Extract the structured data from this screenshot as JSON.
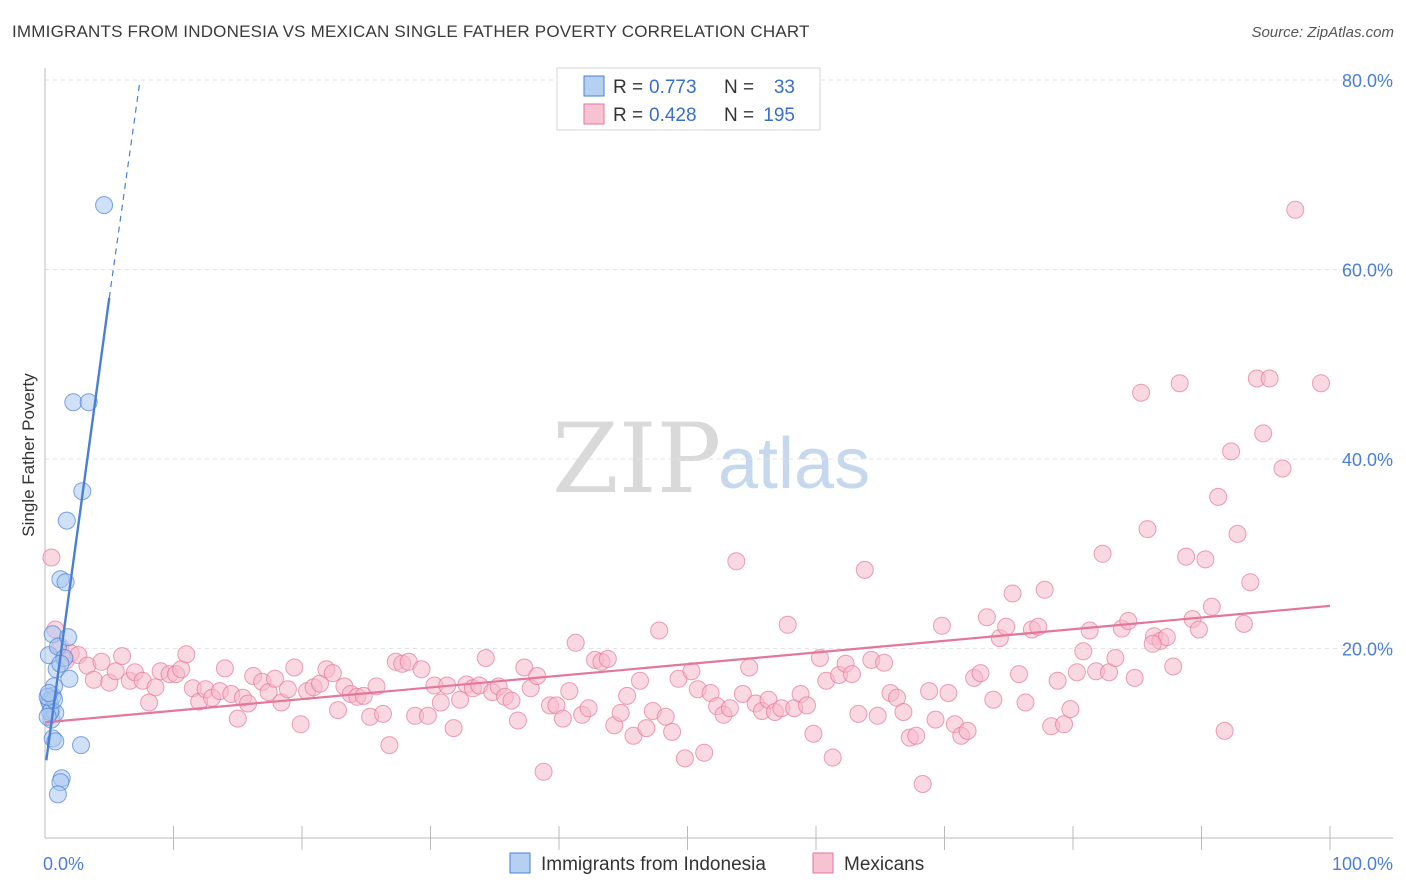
{
  "header": {
    "title": "IMMIGRANTS FROM INDONESIA VS MEXICAN SINGLE FATHER POVERTY CORRELATION CHART",
    "source": "Source: ZipAtlas.com"
  },
  "watermark": {
    "zip": "ZIP",
    "atlas": "atlas"
  },
  "legend": {
    "rows": [
      {
        "r_label": "R =",
        "r_value": "0.773",
        "n_label": "N =",
        "n_value": "33",
        "color": "#a9c8f0"
      },
      {
        "r_label": "R =",
        "r_value": "0.428",
        "n_label": "N =",
        "n_value": "195",
        "color": "#f6b8cb"
      }
    ]
  },
  "chart_data": {
    "type": "scatter",
    "title": "IMMIGRANTS FROM INDONESIA VS MEXICAN SINGLE FATHER POVERTY CORRELATION CHART",
    "xlabel": "",
    "ylabel": "Single Father Poverty",
    "xlim": [
      0,
      100
    ],
    "ylim": [
      0,
      80
    ],
    "x_tick_labels": [
      "0.0%",
      "100.0%"
    ],
    "y_ticks": [
      20,
      40,
      60,
      80
    ],
    "y_tick_labels": [
      "20.0%",
      "40.0%",
      "60.0%",
      "80.0%"
    ],
    "series": [
      {
        "name": "Immigrants from Indonesia",
        "color": "#4a7fd4",
        "fill": "#a9c8f0",
        "trend": {
          "x0": 0.1,
          "y0": 8.2,
          "x1": 5.0,
          "y1": 57.0,
          "dash_to_x": 7.4,
          "dash_to_y": 80.0
        },
        "points": [
          [
            0.3,
            14.5
          ],
          [
            0.4,
            14.2
          ],
          [
            0.5,
            13.5
          ],
          [
            0.6,
            15.0
          ],
          [
            0.7,
            16.0
          ],
          [
            0.5,
            12.5
          ],
          [
            0.8,
            13.2
          ],
          [
            0.3,
            19.3
          ],
          [
            0.6,
            21.5
          ],
          [
            1.0,
            20.2
          ],
          [
            0.9,
            17.8
          ],
          [
            1.2,
            27.3
          ],
          [
            1.6,
            27.0
          ],
          [
            1.8,
            21.2
          ],
          [
            1.9,
            16.8
          ],
          [
            1.7,
            33.5
          ],
          [
            2.2,
            46.0
          ],
          [
            3.4,
            46.0
          ],
          [
            2.9,
            36.6
          ],
          [
            4.6,
            66.8
          ],
          [
            0.6,
            10.5
          ],
          [
            0.8,
            10.2
          ],
          [
            1.3,
            6.3
          ],
          [
            1.2,
            5.9
          ],
          [
            1.0,
            4.6
          ],
          [
            2.8,
            9.8
          ],
          [
            0.4,
            13.3
          ],
          [
            0.7,
            14.6
          ],
          [
            0.2,
            14.9
          ],
          [
            0.3,
            15.3
          ],
          [
            1.5,
            19.0
          ],
          [
            0.2,
            12.8
          ],
          [
            1.2,
            18.4
          ]
        ]
      },
      {
        "name": "Mexicans",
        "color": "#e4769c",
        "fill": "#f6b8cb",
        "trend": {
          "x0": 0.0,
          "y0": 12.2,
          "x1": 100.0,
          "y1": 24.5
        },
        "points": [
          [
            0.5,
            29.6
          ],
          [
            0.8,
            22.0
          ],
          [
            1.2,
            20.2
          ],
          [
            1.6,
            18.7
          ],
          [
            2.0,
            19.5
          ],
          [
            2.6,
            19.3
          ],
          [
            3.3,
            18.2
          ],
          [
            3.8,
            16.7
          ],
          [
            4.4,
            18.6
          ],
          [
            5.0,
            16.4
          ],
          [
            5.5,
            17.6
          ],
          [
            6.0,
            19.2
          ],
          [
            6.6,
            16.6
          ],
          [
            7.0,
            17.5
          ],
          [
            7.6,
            16.6
          ],
          [
            8.1,
            14.3
          ],
          [
            8.6,
            15.9
          ],
          [
            9.0,
            17.6
          ],
          [
            9.7,
            17.3
          ],
          [
            10.2,
            17.3
          ],
          [
            10.6,
            17.8
          ],
          [
            11.0,
            19.4
          ],
          [
            11.5,
            15.8
          ],
          [
            12.0,
            14.4
          ],
          [
            12.5,
            15.7
          ],
          [
            13.0,
            14.8
          ],
          [
            13.6,
            15.5
          ],
          [
            14.0,
            17.9
          ],
          [
            14.5,
            15.2
          ],
          [
            15.0,
            12.6
          ],
          [
            15.4,
            14.8
          ],
          [
            15.8,
            14.2
          ],
          [
            16.2,
            17.1
          ],
          [
            16.9,
            16.5
          ],
          [
            17.4,
            15.4
          ],
          [
            17.9,
            16.8
          ],
          [
            18.4,
            14.3
          ],
          [
            18.9,
            15.7
          ],
          [
            19.4,
            18.0
          ],
          [
            19.9,
            12.0
          ],
          [
            20.4,
            15.5
          ],
          [
            20.9,
            15.9
          ],
          [
            21.4,
            16.3
          ],
          [
            21.9,
            17.8
          ],
          [
            22.4,
            17.4
          ],
          [
            22.8,
            13.5
          ],
          [
            23.3,
            16.0
          ],
          [
            23.8,
            15.2
          ],
          [
            24.3,
            14.9
          ],
          [
            24.8,
            15.0
          ],
          [
            25.3,
            12.8
          ],
          [
            25.8,
            16.0
          ],
          [
            26.3,
            13.1
          ],
          [
            26.8,
            9.8
          ],
          [
            27.3,
            18.6
          ],
          [
            27.8,
            18.4
          ],
          [
            28.3,
            18.6
          ],
          [
            28.8,
            12.9
          ],
          [
            29.3,
            17.8
          ],
          [
            29.8,
            12.9
          ],
          [
            30.3,
            16.1
          ],
          [
            30.8,
            14.3
          ],
          [
            31.3,
            16.1
          ],
          [
            31.8,
            11.6
          ],
          [
            32.3,
            14.6
          ],
          [
            32.8,
            16.2
          ],
          [
            33.3,
            15.8
          ],
          [
            33.8,
            16.1
          ],
          [
            34.3,
            19.0
          ],
          [
            34.8,
            15.4
          ],
          [
            35.3,
            16.0
          ],
          [
            35.8,
            14.9
          ],
          [
            36.3,
            14.5
          ],
          [
            36.8,
            12.4
          ],
          [
            37.3,
            18.0
          ],
          [
            37.8,
            15.8
          ],
          [
            38.3,
            17.1
          ],
          [
            38.8,
            7.0
          ],
          [
            39.3,
            14.0
          ],
          [
            39.8,
            14.0
          ],
          [
            40.3,
            12.6
          ],
          [
            40.8,
            15.5
          ],
          [
            41.3,
            20.6
          ],
          [
            41.8,
            13.0
          ],
          [
            42.3,
            13.7
          ],
          [
            42.8,
            18.8
          ],
          [
            43.3,
            18.6
          ],
          [
            43.8,
            18.9
          ],
          [
            44.3,
            11.9
          ],
          [
            44.8,
            13.2
          ],
          [
            45.3,
            15.0
          ],
          [
            45.8,
            10.8
          ],
          [
            46.3,
            16.6
          ],
          [
            46.8,
            11.6
          ],
          [
            47.3,
            13.4
          ],
          [
            47.8,
            21.9
          ],
          [
            48.3,
            12.8
          ],
          [
            48.8,
            11.2
          ],
          [
            49.3,
            16.8
          ],
          [
            49.8,
            8.4
          ],
          [
            50.3,
            17.6
          ],
          [
            50.8,
            15.7
          ],
          [
            51.3,
            9.0
          ],
          [
            51.8,
            15.3
          ],
          [
            52.3,
            13.9
          ],
          [
            52.8,
            13.0
          ],
          [
            53.3,
            13.7
          ],
          [
            53.8,
            29.2
          ],
          [
            54.3,
            15.2
          ],
          [
            54.8,
            18.0
          ],
          [
            55.3,
            14.2
          ],
          [
            55.8,
            13.4
          ],
          [
            56.3,
            14.6
          ],
          [
            56.8,
            13.3
          ],
          [
            57.3,
            13.7
          ],
          [
            57.8,
            22.5
          ],
          [
            58.3,
            13.7
          ],
          [
            58.8,
            15.2
          ],
          [
            59.3,
            14.0
          ],
          [
            59.8,
            11.0
          ],
          [
            60.3,
            19.0
          ],
          [
            60.8,
            16.6
          ],
          [
            61.3,
            8.5
          ],
          [
            61.8,
            17.2
          ],
          [
            62.3,
            18.4
          ],
          [
            62.8,
            17.3
          ],
          [
            63.3,
            13.1
          ],
          [
            63.8,
            28.3
          ],
          [
            64.3,
            18.8
          ],
          [
            64.8,
            12.9
          ],
          [
            65.3,
            18.5
          ],
          [
            65.8,
            15.3
          ],
          [
            66.3,
            14.8
          ],
          [
            66.8,
            13.3
          ],
          [
            67.3,
            10.6
          ],
          [
            67.8,
            10.8
          ],
          [
            68.3,
            5.7
          ],
          [
            68.8,
            15.5
          ],
          [
            69.3,
            12.5
          ],
          [
            69.8,
            22.4
          ],
          [
            70.3,
            15.3
          ],
          [
            70.8,
            12.0
          ],
          [
            71.3,
            10.8
          ],
          [
            71.8,
            11.3
          ],
          [
            72.3,
            16.9
          ],
          [
            72.8,
            17.4
          ],
          [
            73.3,
            23.3
          ],
          [
            73.8,
            14.6
          ],
          [
            74.3,
            21.1
          ],
          [
            74.8,
            22.3
          ],
          [
            75.3,
            25.8
          ],
          [
            75.8,
            17.3
          ],
          [
            76.3,
            14.3
          ],
          [
            76.8,
            22.0
          ],
          [
            77.3,
            22.3
          ],
          [
            77.8,
            26.2
          ],
          [
            78.3,
            11.8
          ],
          [
            78.8,
            16.6
          ],
          [
            79.3,
            12.0
          ],
          [
            79.8,
            13.6
          ],
          [
            80.3,
            17.5
          ],
          [
            80.8,
            19.7
          ],
          [
            81.3,
            21.9
          ],
          [
            81.8,
            17.6
          ],
          [
            82.3,
            30.0
          ],
          [
            82.8,
            17.5
          ],
          [
            83.3,
            19.0
          ],
          [
            83.8,
            22.1
          ],
          [
            84.3,
            22.9
          ],
          [
            84.8,
            16.9
          ],
          [
            85.3,
            47.0
          ],
          [
            85.8,
            32.6
          ],
          [
            86.3,
            21.3
          ],
          [
            86.8,
            20.8
          ],
          [
            87.3,
            21.2
          ],
          [
            87.8,
            18.1
          ],
          [
            88.3,
            48.0
          ],
          [
            88.8,
            29.7
          ],
          [
            89.3,
            23.1
          ],
          [
            89.8,
            22.0
          ],
          [
            90.3,
            29.4
          ],
          [
            90.8,
            24.4
          ],
          [
            91.3,
            36.0
          ],
          [
            91.8,
            11.3
          ],
          [
            92.3,
            40.8
          ],
          [
            92.8,
            32.1
          ],
          [
            93.3,
            22.6
          ],
          [
            93.8,
            27.0
          ],
          [
            94.3,
            48.5
          ],
          [
            94.8,
            42.7
          ],
          [
            95.3,
            48.5
          ],
          [
            96.3,
            39.0
          ],
          [
            97.3,
            66.3
          ],
          [
            99.3,
            48.0
          ],
          [
            86.2,
            20.5
          ]
        ]
      }
    ]
  },
  "bottom_legend": [
    {
      "label": "Immigrants from Indonesia",
      "color": "#a9c8f0",
      "stroke": "#4a7fd4"
    },
    {
      "label": "Mexicans",
      "color": "#f6b8cb",
      "stroke": "#e4769c"
    }
  ]
}
